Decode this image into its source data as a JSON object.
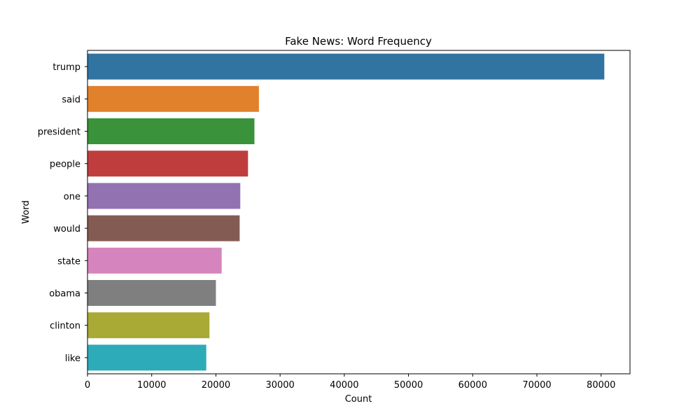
{
  "chart_data": {
    "type": "bar",
    "orientation": "horizontal",
    "title": "Fake News: Word Frequency",
    "xlabel": "Count",
    "ylabel": "Word",
    "categories": [
      "trump",
      "said",
      "president",
      "people",
      "one",
      "would",
      "state",
      "obama",
      "clinton",
      "like"
    ],
    "values": [
      80500,
      26700,
      26000,
      25000,
      23800,
      23700,
      20900,
      20000,
      19000,
      18500
    ],
    "colors": [
      "#3274a1",
      "#e1812c",
      "#3a923a",
      "#c03d3e",
      "#9372b2",
      "#845b53",
      "#d684bd",
      "#7f7f7f",
      "#a9aa35",
      "#2eabb8"
    ],
    "xlim": [
      0,
      84500
    ],
    "xticks": [
      0,
      10000,
      20000,
      30000,
      40000,
      50000,
      60000,
      70000,
      80000
    ],
    "xtick_labels": [
      "0",
      "10000",
      "20000",
      "30000",
      "40000",
      "50000",
      "60000",
      "70000",
      "80000"
    ],
    "grid": false,
    "legend": "none"
  }
}
